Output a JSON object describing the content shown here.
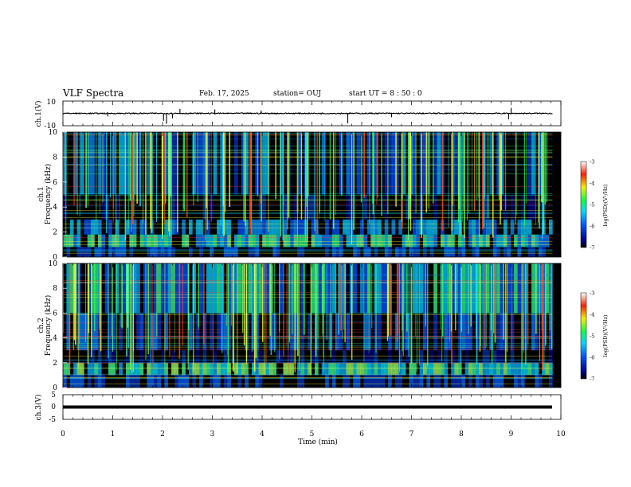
{
  "header": {
    "title": "VLF Spectra",
    "date": "Feb. 17, 2025",
    "station": "station= OUJ",
    "start": "start  UT =   8  : 50 : 0"
  },
  "chart_data": [
    {
      "type": "line",
      "name": "ch1-waveform",
      "ylabel": "ch.1(V)",
      "ylim": [
        -10,
        10
      ],
      "yticks": [
        "10",
        "-10"
      ],
      "level": 0,
      "spikes": [
        [
          0.9,
          -0.6
        ],
        [
          2.02,
          -1.5
        ],
        [
          2.08,
          -2.1
        ],
        [
          2.2,
          -1.0
        ],
        [
          2.35,
          0.9
        ],
        [
          3.05,
          0.8
        ],
        [
          3.98,
          0.6
        ],
        [
          5.72,
          -2.0
        ],
        [
          6.6,
          -0.8
        ],
        [
          8.95,
          -1.2
        ],
        [
          9.0,
          1.1
        ]
      ]
    },
    {
      "type": "heatmap",
      "name": "ch1-spectrogram",
      "ylabel": "ch.1",
      "ylabel2": "Frequency (kHz)",
      "ylim": [
        0,
        10
      ],
      "yticks": [
        "0",
        "2",
        "4",
        "6",
        "8",
        "10"
      ],
      "colorbar": {
        "label": "log(PSD)(V²/Hz)",
        "range": [
          -7,
          -3
        ],
        "ticks": [
          "-3",
          "-4",
          "-5",
          "-6",
          "-7"
        ]
      }
    },
    {
      "type": "heatmap",
      "name": "ch2-spectrogram",
      "ylabel": "ch.2",
      "ylabel2": "Frequency (kHz)",
      "ylim": [
        0,
        10
      ],
      "yticks": [
        "0",
        "2",
        "4",
        "6",
        "8",
        "10"
      ],
      "colorbar": {
        "label": "log(PSD)(V²/Hz)",
        "range": [
          -7,
          -3
        ],
        "ticks": [
          "-3",
          "-4",
          "-5",
          "-6",
          "-7"
        ]
      }
    },
    {
      "type": "line",
      "name": "ch3-waveform",
      "ylabel": "ch.3(V)",
      "ylim": [
        -5,
        5
      ],
      "yticks": [
        "5",
        "0",
        "-5"
      ],
      "level": 0
    }
  ],
  "xaxis": {
    "label": "Time  (min)",
    "xlim": [
      0,
      10
    ],
    "ticks": [
      "0",
      "1",
      "2",
      "3",
      "4",
      "5",
      "6",
      "7",
      "8",
      "9",
      "10"
    ]
  },
  "colors": {
    "background": "#000000",
    "trace": "#000000"
  }
}
